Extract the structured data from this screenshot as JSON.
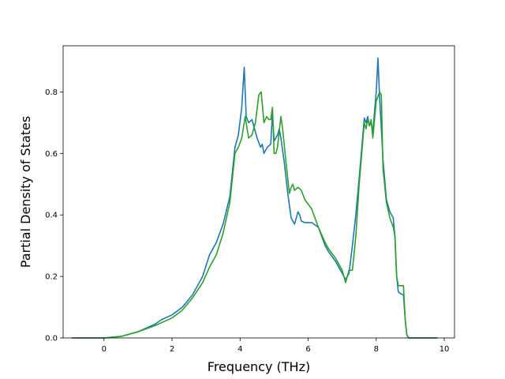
{
  "chart_data": {
    "type": "line",
    "title": "",
    "xlabel": "Frequency (THz)",
    "ylabel": "Partial Density of States",
    "xlim": [
      -1.2,
      10.3
    ],
    "ylim": [
      0,
      0.95
    ],
    "xticks": [
      0,
      2,
      4,
      6,
      8,
      10
    ],
    "xtick_labels": [
      "0",
      "2",
      "4",
      "6",
      "8",
      "10"
    ],
    "yticks": [
      0.0,
      0.2,
      0.4,
      0.6,
      0.8
    ],
    "ytick_labels": [
      "0.0",
      "0.2",
      "0.4",
      "0.6",
      "0.8"
    ],
    "grid": false,
    "legend": "none",
    "series": [
      {
        "color": "#1f77b4",
        "x": [
          -0.95,
          0.0,
          0.5,
          1.0,
          1.5,
          1.7,
          2.0,
          2.3,
          2.6,
          2.9,
          3.1,
          3.3,
          3.5,
          3.7,
          3.85,
          3.95,
          4.05,
          4.12,
          4.18,
          4.25,
          4.35,
          4.45,
          4.5,
          4.6,
          4.65,
          4.7,
          4.75,
          4.8,
          4.9,
          4.95,
          5.0,
          5.1,
          5.15,
          5.2,
          5.3,
          5.4,
          5.5,
          5.55,
          5.6,
          5.7,
          5.75,
          5.8,
          5.9,
          6.1,
          6.3,
          6.5,
          6.6,
          6.8,
          7.0,
          7.1,
          7.2,
          7.3,
          7.4,
          7.5,
          7.65,
          7.7,
          7.75,
          7.8,
          7.85,
          7.9,
          8.0,
          8.05,
          8.1,
          8.2,
          8.3,
          8.4,
          8.5,
          8.55,
          8.6,
          8.65,
          8.7,
          8.8,
          8.85,
          8.9,
          8.95,
          9.5,
          9.8
        ],
        "y": [
          0.0,
          0.0,
          0.005,
          0.02,
          0.045,
          0.06,
          0.075,
          0.1,
          0.14,
          0.2,
          0.27,
          0.31,
          0.37,
          0.46,
          0.62,
          0.66,
          0.75,
          0.88,
          0.72,
          0.7,
          0.71,
          0.67,
          0.65,
          0.62,
          0.63,
          0.6,
          0.61,
          0.62,
          0.63,
          0.73,
          0.64,
          0.66,
          0.68,
          0.65,
          0.57,
          0.47,
          0.39,
          0.38,
          0.37,
          0.41,
          0.4,
          0.38,
          0.375,
          0.375,
          0.36,
          0.3,
          0.28,
          0.25,
          0.21,
          0.19,
          0.21,
          0.3,
          0.4,
          0.52,
          0.715,
          0.7,
          0.72,
          0.69,
          0.7,
          0.67,
          0.8,
          0.91,
          0.78,
          0.58,
          0.45,
          0.41,
          0.39,
          0.33,
          0.2,
          0.15,
          0.145,
          0.14,
          0.06,
          0.01,
          0.0,
          0.0,
          0.0
        ]
      },
      {
        "color": "#2ca02c",
        "x": [
          -0.95,
          0.0,
          0.5,
          1.0,
          1.5,
          2.0,
          2.3,
          2.6,
          2.9,
          3.1,
          3.3,
          3.5,
          3.7,
          3.85,
          3.95,
          4.05,
          4.15,
          4.25,
          4.35,
          4.45,
          4.55,
          4.62,
          4.7,
          4.78,
          4.85,
          4.9,
          4.95,
          5.0,
          5.05,
          5.1,
          5.2,
          5.25,
          5.35,
          5.45,
          5.5,
          5.55,
          5.6,
          5.7,
          5.8,
          5.9,
          6.1,
          6.3,
          6.5,
          6.6,
          6.8,
          7.0,
          7.1,
          7.2,
          7.3,
          7.4,
          7.5,
          7.65,
          7.7,
          7.75,
          7.8,
          7.85,
          7.9,
          8.0,
          8.1,
          8.15,
          8.2,
          8.3,
          8.4,
          8.5,
          8.55,
          8.6,
          8.65,
          8.7,
          8.8,
          8.85,
          8.9,
          8.95,
          9.5,
          9.8
        ],
        "y": [
          0.0,
          0.0,
          0.005,
          0.02,
          0.04,
          0.065,
          0.09,
          0.13,
          0.18,
          0.23,
          0.27,
          0.34,
          0.44,
          0.6,
          0.62,
          0.65,
          0.72,
          0.65,
          0.66,
          0.7,
          0.79,
          0.8,
          0.7,
          0.72,
          0.71,
          0.71,
          0.75,
          0.6,
          0.6,
          0.62,
          0.72,
          0.68,
          0.57,
          0.47,
          0.49,
          0.5,
          0.48,
          0.49,
          0.48,
          0.45,
          0.42,
          0.36,
          0.31,
          0.29,
          0.26,
          0.22,
          0.18,
          0.22,
          0.22,
          0.33,
          0.5,
          0.7,
          0.68,
          0.71,
          0.69,
          0.71,
          0.65,
          0.77,
          0.8,
          0.79,
          0.55,
          0.44,
          0.39,
          0.36,
          0.33,
          0.2,
          0.17,
          0.17,
          0.17,
          0.06,
          0.01,
          0.0,
          0.0,
          0.0
        ]
      }
    ]
  }
}
